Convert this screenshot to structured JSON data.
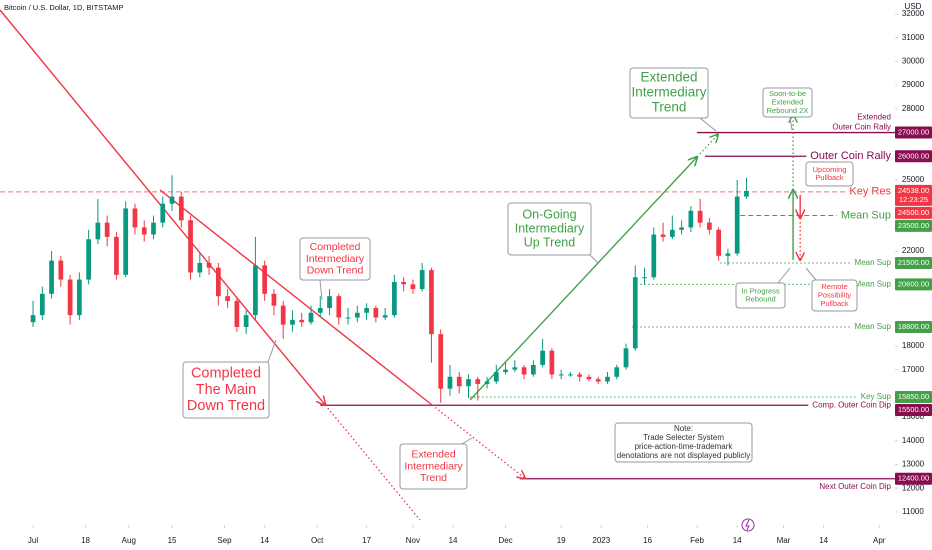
{
  "chart_data": {
    "type": "candlestick",
    "title": "Bitcoin / U.S. Dollar, 1D, BITSTAMP",
    "currency": "USD",
    "up_color": "#089981",
    "down_color": "#f23645",
    "grid": false,
    "xlim": [
      -10.7,
      279.1
    ],
    "ylim": [
      10450,
      32590
    ],
    "xticks": [
      {
        "value": 0,
        "label": "Jul"
      },
      {
        "value": 17,
        "label": "18"
      },
      {
        "value": 31,
        "label": "Aug"
      },
      {
        "value": 45,
        "label": "15"
      },
      {
        "value": 62,
        "label": "Sep"
      },
      {
        "value": 75,
        "label": "14"
      },
      {
        "value": 92,
        "label": "Oct"
      },
      {
        "value": 108,
        "label": "17"
      },
      {
        "value": 123,
        "label": "Nov"
      },
      {
        "value": 136,
        "label": "14"
      },
      {
        "value": 153,
        "label": "Dec"
      },
      {
        "value": 171,
        "label": "19"
      },
      {
        "value": 184,
        "label": "2023"
      },
      {
        "value": 199,
        "label": "16"
      },
      {
        "value": 215,
        "label": "Feb"
      },
      {
        "value": 228,
        "label": "14"
      },
      {
        "value": 243,
        "label": "Mar"
      },
      {
        "value": 256,
        "label": "14"
      },
      {
        "value": 274,
        "label": "Apr"
      }
    ],
    "yticks": [
      11000,
      12000,
      13000,
      14000,
      15000,
      17000,
      18000,
      22000,
      25000,
      28000,
      29000,
      30000,
      31000,
      32000
    ],
    "x": [
      0,
      3,
      6,
      9,
      12,
      15,
      18,
      21,
      24,
      27,
      30,
      33,
      36,
      39,
      42,
      45,
      48,
      51,
      54,
      57,
      60,
      63,
      66,
      69,
      72,
      75,
      78,
      81,
      84,
      87,
      90,
      93,
      96,
      99,
      102,
      105,
      108,
      111,
      114,
      117,
      120,
      123,
      126,
      129,
      132,
      135,
      138,
      141,
      144,
      147,
      150,
      153,
      156,
      159,
      162,
      165,
      168,
      171,
      174,
      177,
      180,
      183,
      186,
      189,
      192,
      195,
      198,
      201,
      204,
      207,
      210,
      213,
      216,
      219,
      222,
      225,
      228,
      231
    ],
    "open": [
      19000,
      19300,
      20200,
      21600,
      20800,
      19300,
      20800,
      22500,
      23200,
      22600,
      21000,
      23800,
      23000,
      22700,
      23200,
      24000,
      24300,
      23300,
      21100,
      21500,
      21300,
      20100,
      19900,
      18800,
      19300,
      21400,
      20200,
      19700,
      18900,
      19100,
      19000,
      19400,
      19600,
      20100,
      19200,
      19200,
      19400,
      19600,
      19200,
      19300,
      20700,
      20600,
      20400,
      21200,
      18500,
      16200,
      16700,
      16300,
      16600,
      16400,
      16500,
      16900,
      17000,
      17100,
      16800,
      17200,
      17800,
      16800,
      16800,
      16800,
      16700,
      16600,
      16500,
      16700,
      17100,
      17900,
      20900,
      20900,
      22700,
      22600,
      22900,
      23000,
      23700,
      23200,
      22900,
      21800,
      21900,
      24300
    ],
    "high": [
      19900,
      20500,
      22000,
      21800,
      21000,
      21100,
      22900,
      24200,
      23500,
      22800,
      24100,
      24000,
      23300,
      23500,
      24300,
      25200,
      24500,
      23500,
      21900,
      21800,
      21500,
      20400,
      20000,
      19500,
      22600,
      21600,
      20400,
      19900,
      19500,
      19400,
      19700,
      20100,
      20400,
      20200,
      19600,
      19700,
      19800,
      19700,
      19600,
      21000,
      20900,
      20800,
      21500,
      21300,
      18700,
      17200,
      16900,
      16800,
      16700,
      16700,
      17200,
      17300,
      17400,
      17200,
      17400,
      18300,
      17900,
      17000,
      16900,
      16900,
      16800,
      16700,
      16900,
      17200,
      18100,
      21400,
      21300,
      23000,
      23200,
      23500,
      23300,
      23900,
      24200,
      23400,
      23000,
      22100,
      25000,
      25100
    ],
    "low": [
      18800,
      19100,
      20000,
      20500,
      18900,
      19100,
      20600,
      22300,
      22200,
      20800,
      20900,
      22700,
      22400,
      22500,
      23000,
      23700,
      23000,
      20800,
      20900,
      21000,
      19700,
      19600,
      18600,
      18500,
      19100,
      19900,
      19300,
      18300,
      18600,
      18800,
      18900,
      19200,
      19300,
      18900,
      18900,
      19000,
      19100,
      19000,
      19100,
      19200,
      20300,
      20200,
      20300,
      17300,
      15600,
      15900,
      16000,
      15800,
      15700,
      16200,
      16400,
      16800,
      16900,
      16600,
      16700,
      17100,
      16600,
      16600,
      16700,
      16500,
      16500,
      16400,
      16400,
      16600,
      17000,
      17800,
      20600,
      20800,
      22400,
      22500,
      22700,
      22800,
      23000,
      22700,
      21600,
      21400,
      21800,
      24200
    ],
    "close": [
      19300,
      20200,
      21600,
      20800,
      19300,
      20800,
      22500,
      23200,
      22600,
      21000,
      23800,
      23000,
      22700,
      23200,
      24000,
      24300,
      23300,
      21100,
      21500,
      21300,
      20100,
      19900,
      18800,
      19300,
      21400,
      20200,
      19700,
      18900,
      19100,
      19000,
      19400,
      19600,
      20100,
      19200,
      19200,
      19400,
      19600,
      19200,
      19300,
      20700,
      20600,
      20400,
      21200,
      18500,
      16200,
      16700,
      16300,
      16600,
      16400,
      16500,
      16900,
      17000,
      17100,
      16800,
      17200,
      17800,
      16800,
      16800,
      16800,
      16700,
      16600,
      16500,
      16700,
      17100,
      17900,
      20900,
      20900,
      22700,
      22600,
      22900,
      23000,
      23700,
      23200,
      22900,
      21800,
      21900,
      24300,
      24538
    ],
    "last_price": {
      "value": 24538,
      "label": "24538.00",
      "countdown": "12:23:25",
      "color": "#f23645"
    },
    "levels": [
      {
        "value": 27000,
        "label": "27000.00",
        "from": 215,
        "color": "#880e4f",
        "style": "solid",
        "text": [
          "Extended",
          "Outer Coin Rally"
        ],
        "text_size": "small",
        "text_position": "above"
      },
      {
        "value": 26000,
        "label": "26000.00",
        "from": 217.6,
        "color": "#880e4f",
        "style": "solid",
        "text": [
          "Outer Coin Rally"
        ],
        "text_size": "large",
        "text_position": "center"
      },
      {
        "value": 24500,
        "label": "24500.00",
        "from": -10.7,
        "color": "#f23645",
        "style": "dashed",
        "text": [
          "Key Res"
        ],
        "text_size": "large",
        "text_position": "center"
      },
      {
        "value": 23500,
        "label": "23500.00",
        "from": 229,
        "color": "#43a047",
        "style": "dashed",
        "text": [
          "Mean Sup"
        ],
        "text_size": "large",
        "text_position": "center"
      },
      {
        "value": 21500,
        "label": "21500.00",
        "from": 222.5,
        "color": "#43a047",
        "style": "dotted",
        "text": [
          "Mean Sup"
        ],
        "text_size": "small",
        "text_position": "center"
      },
      {
        "value": 20600,
        "label": "20600.00",
        "from": 196.6,
        "color": "#43a047",
        "style": "dotted",
        "text": [
          "Mean Sup"
        ],
        "text_size": "small",
        "text_position": "center"
      },
      {
        "value": 18800,
        "label": "18800.00",
        "from": 194,
        "color": "#43a047",
        "style": "dotted",
        "text": [
          "Mean Sup"
        ],
        "text_size": "small",
        "text_position": "center"
      },
      {
        "value": 15850,
        "label": "15850.00",
        "from": 141.5,
        "color": "#43a047",
        "style": "dotted",
        "text": [
          "Key Sup"
        ],
        "text_size": "small",
        "text_position": "center"
      },
      {
        "value": 15500,
        "label": "15500.00",
        "from": 93,
        "color": "#880e4f",
        "style": "solid",
        "text": [
          "Comp. Outer Coin Dip"
        ],
        "text_size": "small",
        "text_position": "center"
      },
      {
        "value": 12400,
        "label": "12400.00",
        "from": 157.7,
        "color": "#880e4f",
        "style": "solid",
        "text": [
          "Next Outer Coin Dip"
        ],
        "text_size": "small",
        "text_position": "below"
      }
    ],
    "trendlines": [
      {
        "x": [
          -10.7,
          94.6
        ],
        "y": [
          32168,
          15511
        ],
        "color": "#f23645",
        "style": "solid",
        "arrow": true
      },
      {
        "x": [
          94.6,
          125.3
        ],
        "y": [
          15511,
          10660
        ],
        "color": "#f23645",
        "style": "dotted",
        "arrow": false
      },
      {
        "x": [
          41.1,
          129.2
        ],
        "y": [
          24578,
          15511
        ],
        "color": "#f23645",
        "style": "solid",
        "arrow": false
      },
      {
        "x": [
          129.2,
          159.3
        ],
        "y": [
          15511,
          12414
        ],
        "color": "#f23645",
        "style": "dotted",
        "arrow": true
      },
      {
        "x": [
          141.5,
          215
        ],
        "y": [
          15722,
          25969
        ],
        "color": "#43a047",
        "style": "solid",
        "arrow": true
      },
      {
        "x": [
          215,
          221.8
        ],
        "y": [
          25969,
          26917
        ],
        "color": "#43a047",
        "style": "dotted",
        "arrow": true
      },
      {
        "x": [
          246.1,
          246.1
        ],
        "y": [
          21628,
          24578
        ],
        "color": "#43a047",
        "style": "solid",
        "arrow": true
      },
      {
        "x": [
          246.1,
          246.1
        ],
        "y": [
          24578,
          27741
        ],
        "color": "#43a047",
        "style": "dotted",
        "arrow": true
      },
      {
        "x": [
          248.4,
          248.4
        ],
        "y": [
          24367,
          23397
        ],
        "color": "#f23645",
        "style": "solid",
        "arrow": true
      },
      {
        "x": [
          248.4,
          248.4
        ],
        "y": [
          23397,
          21628
        ],
        "color": "#f23645",
        "style": "dotted",
        "arrow": true
      }
    ],
    "annotations": [
      {
        "lines": [
          "Extended",
          "Intermediary",
          "Trend"
        ],
        "color": "#43a047"
      },
      {
        "lines": [
          "On-Going",
          "Intermediary",
          "Up Trend"
        ],
        "color": "#43a047"
      },
      {
        "lines": [
          "Completed",
          "Intermediary",
          "Down Trend"
        ],
        "color": "#f23645"
      },
      {
        "lines": [
          "Completed",
          "The Main",
          "Down Trend"
        ],
        "color": "#f23645"
      },
      {
        "lines": [
          "Extended",
          "Intermediary",
          "Trend"
        ],
        "color": "#f23645"
      },
      {
        "lines": [
          "Note:",
          "Trade Selecter System",
          "price-action-time-trademark",
          "denotations are not displayed publicly"
        ],
        "color": "#333333"
      },
      {
        "lines": [
          "Soon-to-be",
          "Extended",
          "Rebound 2X"
        ],
        "color": "#43a047"
      },
      {
        "lines": [
          "Upcoming",
          "Pullback"
        ],
        "color": "#f23645"
      },
      {
        "lines": [
          "In Progress",
          "Rebound"
        ],
        "color": "#43a047"
      },
      {
        "lines": [
          "Remote",
          "Possibility",
          "Pullback"
        ],
        "color": "#f23645"
      }
    ]
  }
}
